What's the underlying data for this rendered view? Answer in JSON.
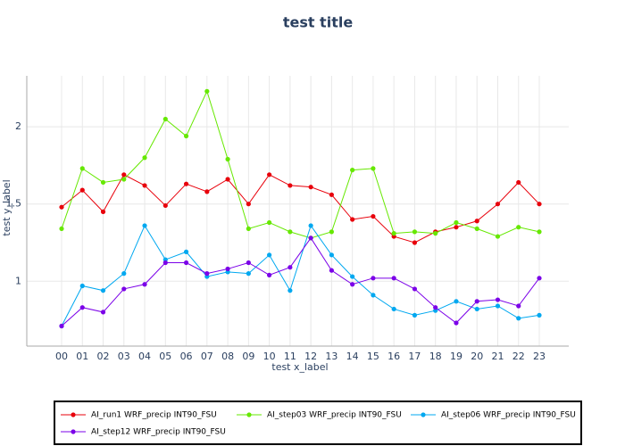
{
  "chart_data": {
    "type": "line",
    "title": "test title",
    "x_label": "test x_label",
    "y_label": "test y_label",
    "categories": [
      "00",
      "01",
      "02",
      "03",
      "04",
      "05",
      "06",
      "07",
      "08",
      "09",
      "10",
      "11",
      "12",
      "13",
      "14",
      "15",
      "16",
      "17",
      "18",
      "19",
      "20",
      "21",
      "22",
      "23"
    ],
    "series": [
      {
        "name": "AI_run1 WRF_precip INT90_FSU",
        "color": "#e8000b",
        "values": [
          1.48,
          1.59,
          1.45,
          1.69,
          1.62,
          1.49,
          1.63,
          1.58,
          1.66,
          1.5,
          1.69,
          1.62,
          1.61,
          1.56,
          1.4,
          1.42,
          1.29,
          1.25,
          1.32,
          1.35,
          1.39,
          1.5,
          1.64,
          1.5
        ]
      },
      {
        "name": "AI_step03 WRF_precip INT90_FSU",
        "color": "#66e800",
        "values": [
          1.34,
          1.73,
          1.64,
          1.66,
          1.8,
          2.05,
          1.94,
          2.23,
          1.79,
          1.34,
          1.38,
          1.32,
          1.28,
          1.32,
          1.72,
          1.73,
          1.31,
          1.32,
          1.31,
          1.38,
          1.34,
          1.29,
          1.35,
          1.32
        ]
      },
      {
        "name": "AI_step06 WRF_precip INT90_FSU",
        "color": "#00a8f0",
        "values": [
          0.71,
          0.97,
          0.94,
          1.05,
          1.36,
          1.14,
          1.19,
          1.03,
          1.06,
          1.05,
          1.17,
          0.94,
          1.36,
          1.17,
          1.03,
          0.91,
          0.82,
          0.78,
          0.81,
          0.87,
          0.82,
          0.84,
          0.76,
          0.78
        ]
      },
      {
        "name": "AI_step12 WRF_precip INT90_FSU",
        "color": "#7b00e8",
        "values": [
          0.71,
          0.83,
          0.8,
          0.95,
          0.98,
          1.12,
          1.12,
          1.05,
          1.08,
          1.12,
          1.04,
          1.09,
          1.28,
          1.07,
          0.98,
          1.02,
          1.02,
          0.95,
          0.83,
          0.73,
          0.87,
          0.88,
          0.84,
          1.02
        ]
      }
    ],
    "ylim": [
      0.58,
      2.33
    ],
    "yticks": [
      1,
      1.5,
      2
    ],
    "grid": true,
    "legend": "bottom"
  }
}
